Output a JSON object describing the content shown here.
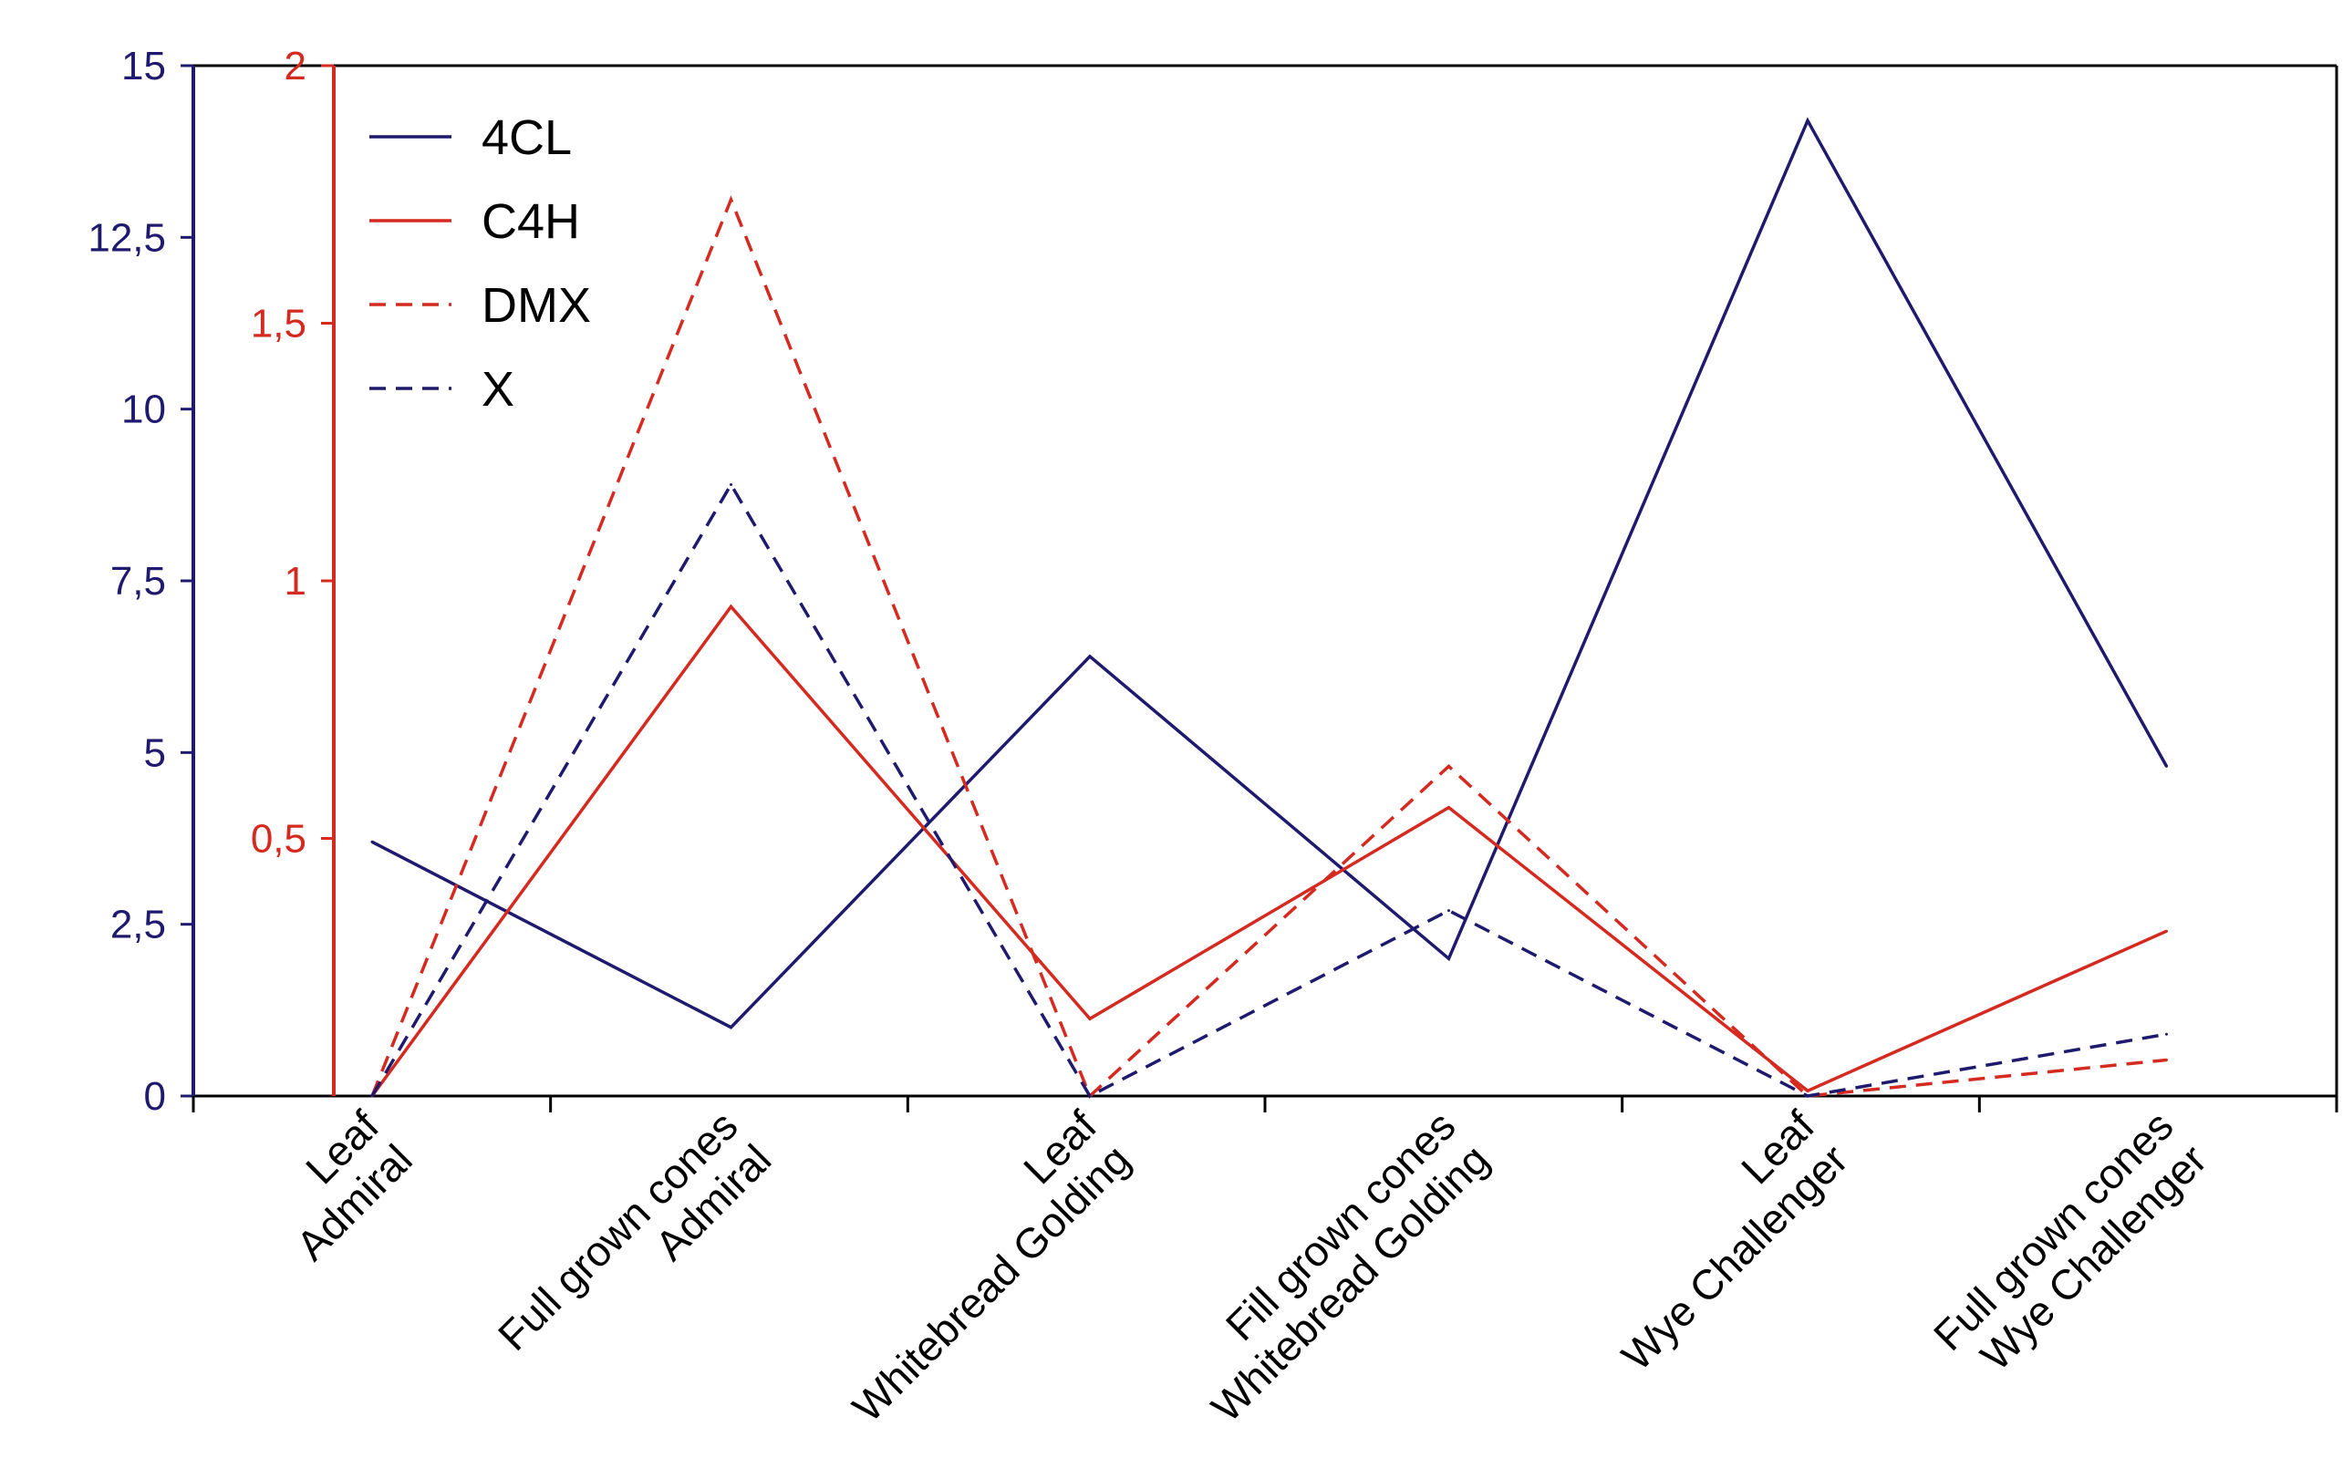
{
  "chart_data": {
    "type": "line",
    "title": "",
    "xlabel": "",
    "ylabel": "",
    "categories": [
      [
        "Leaf",
        "Admiral"
      ],
      [
        "Full grown cones",
        "Admiral"
      ],
      [
        "Leaf",
        "Whitebread Golding"
      ],
      [
        "Fill grown cones",
        "Whitebread Golding"
      ],
      [
        "Leaf",
        "Wye Challenger"
      ],
      [
        "Full grown cones",
        "Wye Challenger"
      ]
    ],
    "left_axis": {
      "ylim": [
        0,
        15
      ],
      "ticks": [
        0,
        2.5,
        5,
        7.5,
        10,
        12.5,
        15
      ],
      "tick_labels": [
        "0",
        "2,5",
        "5",
        "7,5",
        "10",
        "12,5",
        "15"
      ],
      "color": "#1f1a6e"
    },
    "right_axis": {
      "ylim": [
        0,
        2
      ],
      "ticks": [
        0.5,
        1,
        1.5,
        2
      ],
      "tick_labels": [
        "0,5",
        "1",
        "1,5",
        "2"
      ],
      "color": "#d42a20"
    },
    "series": [
      {
        "name": "4CL",
        "axis": "left",
        "color": "#1f1a6e",
        "dash": false,
        "values": [
          3.7,
          1.0,
          6.4,
          2.0,
          14.2,
          4.8
        ]
      },
      {
        "name": "C4H",
        "axis": "right",
        "color": "#d42a20",
        "dash": false,
        "values": [
          0.0,
          0.95,
          0.15,
          0.56,
          0.01,
          0.32
        ]
      },
      {
        "name": "DMX",
        "axis": "right",
        "color": "#d42a20",
        "dash": true,
        "values": [
          0.0,
          1.74,
          0.0,
          0.64,
          0.0,
          0.07
        ]
      },
      {
        "name": "X",
        "axis": "left",
        "color": "#1f1a6e",
        "dash": true,
        "values": [
          0.0,
          8.9,
          0.0,
          2.7,
          0.0,
          0.9
        ]
      }
    ],
    "grid": false,
    "legend_position": "top-left"
  }
}
